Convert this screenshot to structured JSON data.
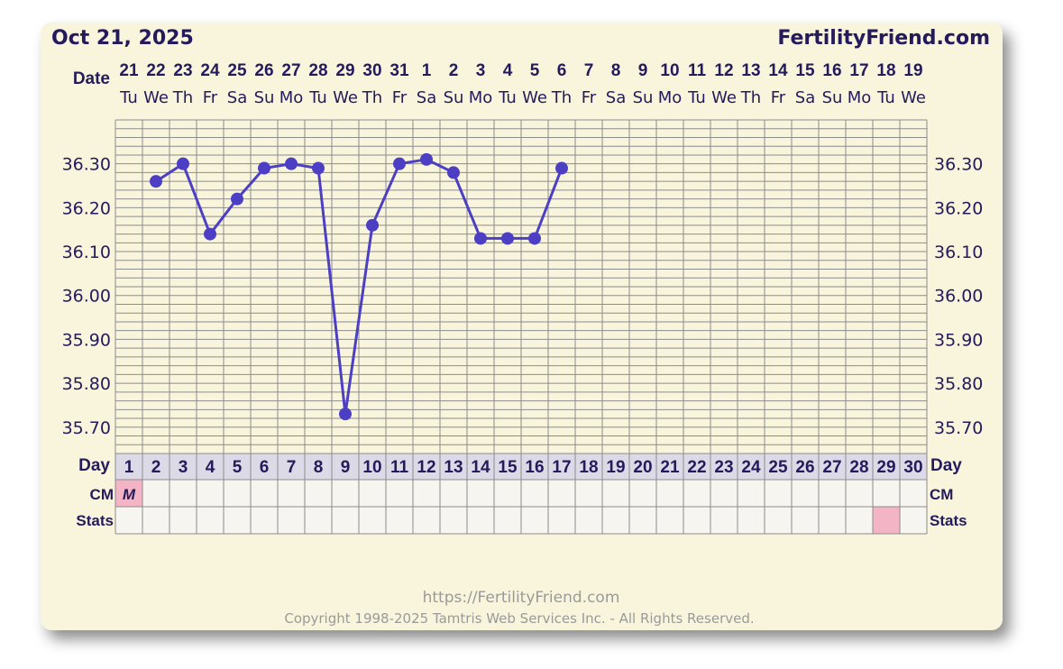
{
  "header": {
    "date": "Oct 21, 2025",
    "brand": "FertilityFriend.com"
  },
  "row_labels": {
    "date": "Date",
    "day": "Day",
    "cm": "CM",
    "stats": "Stats"
  },
  "footer": {
    "url": "https://FertilityFriend.com",
    "copyright": "Copyright 1998-2025 Tamtris Web Services Inc. - All Rights Reserved."
  },
  "chart_data": {
    "type": "line",
    "dates": [
      "21",
      "22",
      "23",
      "24",
      "25",
      "26",
      "27",
      "28",
      "29",
      "30",
      "31",
      "1",
      "2",
      "3",
      "4",
      "5",
      "6",
      "7",
      "8",
      "9",
      "10",
      "11",
      "12",
      "13",
      "14",
      "15",
      "16",
      "17",
      "18",
      "19"
    ],
    "weekdays": [
      "Tu",
      "We",
      "Th",
      "Fr",
      "Sa",
      "Su",
      "Mo",
      "Tu",
      "We",
      "Th",
      "Fr",
      "Sa",
      "Su",
      "Mo",
      "Tu",
      "We",
      "Th",
      "Fr",
      "Sa",
      "Su",
      "Mo",
      "Tu",
      "We",
      "Th",
      "Fr",
      "Sa",
      "Su",
      "Mo",
      "Tu",
      "We"
    ],
    "days": [
      "1",
      "2",
      "3",
      "4",
      "5",
      "6",
      "7",
      "8",
      "9",
      "10",
      "11",
      "12",
      "13",
      "14",
      "15",
      "16",
      "17",
      "18",
      "19",
      "20",
      "21",
      "22",
      "23",
      "24",
      "25",
      "26",
      "27",
      "28",
      "29",
      "30"
    ],
    "y_ticks": [
      "36.30",
      "36.20",
      "36.10",
      "36.00",
      "35.90",
      "35.80",
      "35.70"
    ],
    "ylim": [
      35.64,
      36.4
    ],
    "series": [
      {
        "values": [
          null,
          36.26,
          36.3,
          36.14,
          36.22,
          36.29,
          36.3,
          36.29,
          35.73,
          36.16,
          36.3,
          36.31,
          36.28,
          36.13,
          36.13,
          36.13,
          36.29,
          null,
          null,
          null,
          null,
          null,
          null,
          null,
          null,
          null,
          null,
          null,
          null,
          null
        ]
      }
    ],
    "cm": [
      "M",
      "",
      "",
      "",
      "",
      "",
      "",
      "",
      "",
      "",
      "",
      "",
      "",
      "",
      "",
      "",
      "",
      "",
      "",
      "",
      "",
      "",
      "",
      "",
      "",
      "",
      "",
      "",
      "",
      ""
    ],
    "stats_highlight_day": 29,
    "grid": true,
    "colors": {
      "line": "#4d3fc4",
      "grid": "#8c8c8c",
      "highlight": "#f3b4c6",
      "text": "#241a5c"
    }
  }
}
